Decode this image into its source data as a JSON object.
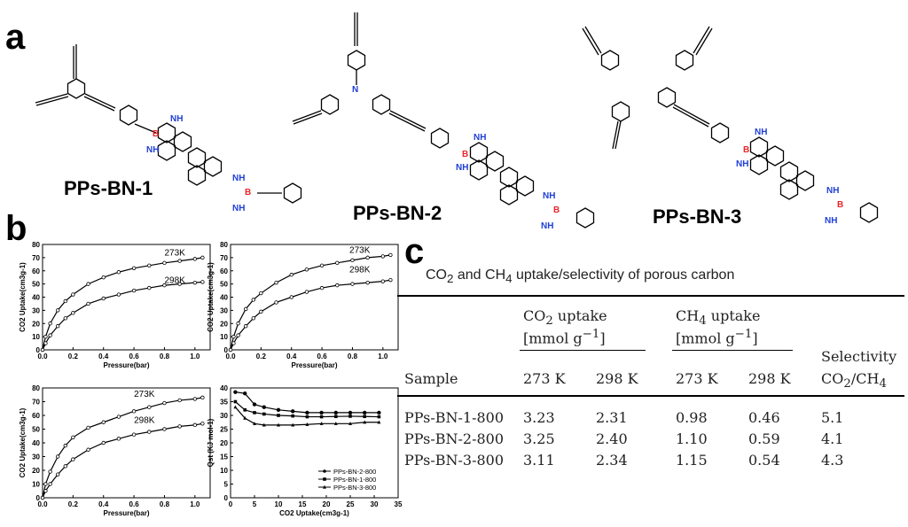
{
  "panels": {
    "a": "a",
    "b": "b",
    "c": "c"
  },
  "molecules": {
    "m1": {
      "label": "PPs-BN-1"
    },
    "m2": {
      "label": "PPs-BN-2"
    },
    "m3": {
      "label": "PPs-BN-3"
    },
    "atoms": {
      "B": "B",
      "NH": "NH",
      "N": "N"
    }
  },
  "chart_data": [
    {
      "type": "line",
      "xlabel": "Pressure(bar)",
      "ylabel": "CO2 Uptake(cm3g-1)",
      "xlim": [
        0,
        1.1
      ],
      "ylim": [
        0,
        80
      ],
      "xticks": [
        "0.0",
        "0.2",
        "0.4",
        "0.6",
        "0.8",
        "1.0"
      ],
      "yticks": [
        "0",
        "10",
        "20",
        "30",
        "40",
        "50",
        "60",
        "70",
        "80"
      ],
      "series": [
        {
          "name": "273K",
          "x": [
            0,
            0.02,
            0.05,
            0.1,
            0.15,
            0.2,
            0.3,
            0.4,
            0.5,
            0.6,
            0.7,
            0.8,
            0.9,
            1.0,
            1.05
          ],
          "values": [
            0,
            10,
            20,
            30,
            37,
            42,
            50,
            55,
            59,
            62,
            64,
            66,
            67.5,
            69,
            70
          ]
        },
        {
          "name": "298K",
          "x": [
            0,
            0.02,
            0.05,
            0.1,
            0.15,
            0.2,
            0.3,
            0.4,
            0.5,
            0.6,
            0.7,
            0.8,
            0.9,
            1.0,
            1.05
          ],
          "values": [
            0,
            5,
            11,
            18,
            24,
            28,
            35,
            39,
            42,
            45,
            47,
            49,
            50,
            51,
            51.5
          ]
        }
      ]
    },
    {
      "type": "line",
      "xlabel": "Pressure(bar)",
      "ylabel": "CO2 Uptake(cm3g-1)",
      "xlim": [
        0,
        1.1
      ],
      "ylim": [
        0,
        80
      ],
      "xticks": [
        "0.0",
        "0.2",
        "0.4",
        "0.6",
        "0.8",
        "1.0"
      ],
      "yticks": [
        "0",
        "10",
        "20",
        "30",
        "40",
        "50",
        "60",
        "70",
        "80"
      ],
      "series": [
        {
          "name": "273K",
          "x": [
            0,
            0.02,
            0.05,
            0.1,
            0.15,
            0.2,
            0.3,
            0.4,
            0.5,
            0.6,
            0.7,
            0.8,
            0.9,
            1.0,
            1.05
          ],
          "values": [
            0,
            10,
            20,
            31,
            38,
            43,
            51,
            57,
            61,
            64,
            66,
            68,
            70,
            71,
            72
          ]
        },
        {
          "name": "298K",
          "x": [
            0,
            0.02,
            0.05,
            0.1,
            0.15,
            0.2,
            0.3,
            0.4,
            0.5,
            0.6,
            0.7,
            0.8,
            0.9,
            1.0,
            1.05
          ],
          "values": [
            0,
            5,
            11,
            18,
            24,
            29,
            36,
            40,
            44,
            47,
            49,
            50,
            51,
            52,
            53
          ]
        }
      ]
    },
    {
      "type": "line",
      "xlabel": "Pressure(bar)",
      "ylabel": "CO2 Uptake(cm3g-1)",
      "xlim": [
        0,
        1.1
      ],
      "ylim": [
        0,
        80
      ],
      "xticks": [
        "0.0",
        "0.2",
        "0.4",
        "0.6",
        "0.8",
        "1.0"
      ],
      "yticks": [
        "0",
        "10",
        "20",
        "30",
        "40",
        "50",
        "60",
        "70",
        "80"
      ],
      "series": [
        {
          "name": "273K",
          "x": [
            0,
            0.02,
            0.05,
            0.1,
            0.15,
            0.2,
            0.3,
            0.4,
            0.5,
            0.6,
            0.7,
            0.8,
            0.9,
            1.0,
            1.05
          ],
          "values": [
            0,
            10,
            19,
            30,
            38,
            44,
            51,
            55,
            59,
            63,
            66,
            69,
            71,
            72,
            73
          ]
        },
        {
          "name": "298K",
          "x": [
            0,
            0.02,
            0.05,
            0.1,
            0.15,
            0.2,
            0.3,
            0.4,
            0.5,
            0.6,
            0.7,
            0.8,
            0.9,
            1.0,
            1.05
          ],
          "values": [
            0,
            5,
            10,
            17,
            23,
            28,
            35,
            40,
            43,
            46,
            48,
            50,
            52,
            53,
            54
          ]
        }
      ]
    },
    {
      "type": "line",
      "xlabel": "CO2 Uptake(cm3g-1)",
      "ylabel": "Qst (KJ mol-1)",
      "xlim": [
        0,
        35
      ],
      "ylim": [
        0,
        40
      ],
      "xticks": [
        "0",
        "5",
        "10",
        "15",
        "20",
        "25",
        "30",
        "35"
      ],
      "yticks": [
        "0",
        "5",
        "10",
        "15",
        "20",
        "25",
        "30",
        "35",
        "40"
      ],
      "legend": "bottom-right",
      "series": [
        {
          "name": "PPs-BN-2-800",
          "x": [
            1,
            3,
            5,
            7,
            10,
            13,
            16,
            19,
            22,
            25,
            28,
            31
          ],
          "values": [
            38.5,
            38,
            34,
            33,
            32,
            31.5,
            31,
            31,
            31,
            31,
            31,
            31
          ]
        },
        {
          "name": "PPs-BN-1-800",
          "x": [
            1,
            3,
            5,
            7,
            10,
            13,
            16,
            19,
            22,
            25,
            28,
            31
          ],
          "values": [
            35,
            32,
            31,
            30.5,
            30,
            29.8,
            29.5,
            29.5,
            29.6,
            29.7,
            29.6,
            29.5
          ]
        },
        {
          "name": "PPs-BN-3-800",
          "x": [
            1,
            3,
            5,
            7,
            10,
            13,
            16,
            19,
            22,
            25,
            28,
            31
          ],
          "values": [
            33,
            29,
            27,
            26.5,
            26.5,
            26.5,
            26.7,
            27,
            27,
            27,
            27.5,
            27.5
          ]
        }
      ]
    }
  ],
  "table": {
    "title_pre": "CO",
    "title_sub1": "2",
    "title_mid": " and CH",
    "title_sub2": "4",
    "title_post": " uptake/selectivity of porous carbon",
    "group1_a": "CO",
    "group1_sub": "2",
    "group1_b": " uptake",
    "group1_unit": "[mmol g",
    "group1_sup": "−1",
    "group1_close": "]",
    "group2_a": "CH",
    "group2_sub": "4",
    "group2_b": " uptake",
    "group2_unit": "[mmol g",
    "group2_sup": "−1",
    "group2_close": "]",
    "sel_label": "Selectivity",
    "sel_ratio_a": "CO",
    "sel_ratio_sub1": "2",
    "sel_ratio_b": "/CH",
    "sel_ratio_sub2": "4",
    "sample_label": "Sample",
    "temps": [
      "273 K",
      "298 K",
      "273 K",
      "298 K"
    ],
    "rows": [
      [
        "PPs-BN-1-800",
        "3.23",
        "2.31",
        "0.98",
        "0.46",
        "5.1"
      ],
      [
        "PPs-BN-2-800",
        "3.25",
        "2.40",
        "1.10",
        "0.59",
        "4.1"
      ],
      [
        "PPs-BN-3-800",
        "3.11",
        "2.34",
        "1.15",
        "0.54",
        "4.3"
      ]
    ]
  },
  "colors": {
    "boron": "#e8262a",
    "nitrogen": "#1f3fd6"
  }
}
